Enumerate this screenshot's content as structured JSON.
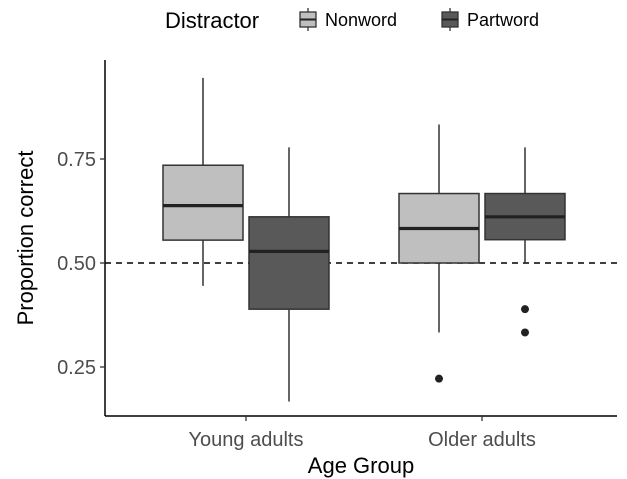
{
  "chart_data": {
    "type": "boxplot",
    "xlabel": "Age Group",
    "ylabel": "Proportion correct",
    "categories": [
      "Young adults",
      "Older adults"
    ],
    "y_ticks": [
      0.25,
      0.5,
      0.75
    ],
    "y_tick_labels": [
      "0.25",
      "0.50",
      "0.75"
    ],
    "ylim": [
      0.13,
      0.97
    ],
    "reference_line": {
      "y": 0.5,
      "style": "dashed"
    },
    "legend": {
      "title": "Distractor",
      "placement": "top",
      "entries": [
        {
          "name": "Nonword",
          "color": "#bfbfbf"
        },
        {
          "name": "Partword",
          "color": "#595959"
        }
      ]
    },
    "series": [
      {
        "name": "Nonword",
        "color": "#bfbfbf",
        "boxes": [
          {
            "category": "Young adults",
            "whisker_low": 0.445,
            "q1": 0.555,
            "median": 0.638,
            "q3": 0.735,
            "whisker_high": 0.945,
            "outliers": []
          },
          {
            "category": "Older adults",
            "whisker_low": 0.333,
            "q1": 0.5,
            "median": 0.583,
            "q3": 0.667,
            "whisker_high": 0.833,
            "outliers": [
              0.222
            ]
          }
        ]
      },
      {
        "name": "Partword",
        "color": "#595959",
        "boxes": [
          {
            "category": "Young adults",
            "whisker_low": 0.167,
            "q1": 0.389,
            "median": 0.528,
            "q3": 0.611,
            "whisker_high": 0.778,
            "outliers": []
          },
          {
            "category": "Older adults",
            "whisker_low": 0.5,
            "q1": 0.556,
            "median": 0.611,
            "q3": 0.667,
            "whisker_high": 0.778,
            "outliers": [
              0.389,
              0.333
            ]
          }
        ]
      }
    ],
    "grid": false
  }
}
